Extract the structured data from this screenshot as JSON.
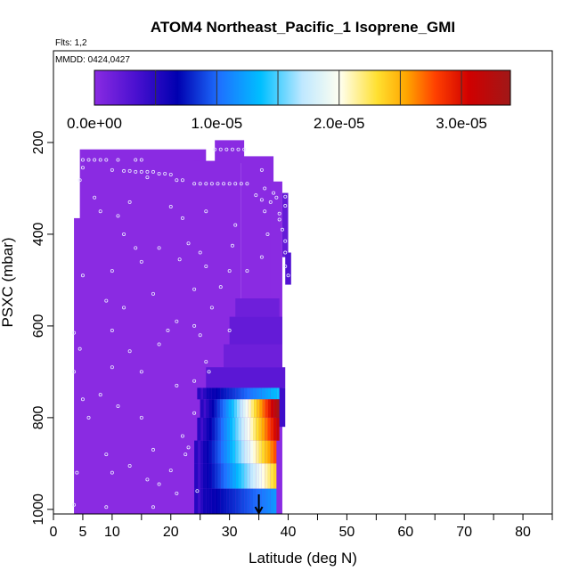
{
  "chart_data": {
    "type": "heatmap",
    "title": "ATOM4 Northeast_Pacific_1 Isoprene_GMI",
    "flights_note": "Flts: 1,2",
    "dates_note": "MMDD: 0424,0427",
    "xlabel": "Latitude (deg N)",
    "ylabel": "PSXC (mbar)",
    "xlim": [
      0,
      85
    ],
    "ylim": [
      1010,
      0
    ],
    "x_major_ticks": [
      0,
      5,
      10,
      20,
      30,
      40,
      50,
      60,
      70,
      80
    ],
    "x_tick_labels": [
      "0",
      "5",
      "10",
      "20",
      "30",
      "40",
      "50",
      "60",
      "70",
      "80"
    ],
    "x_minor_ticks": [
      15,
      25,
      35,
      45,
      55,
      65,
      75,
      85
    ],
    "y_ticks": [
      200,
      400,
      600,
      800,
      1000
    ],
    "y_tick_labels": [
      "200",
      "400",
      "600",
      "800",
      "1000"
    ],
    "colorbar": {
      "min": 0,
      "max": 3.4e-05,
      "tick_values": [
        0,
        1e-05,
        2e-05,
        3e-05
      ],
      "tick_labels": [
        "0.0e+00",
        "1.0e-05",
        "2.0e-05",
        "3.0e-05"
      ],
      "stops": [
        {
          "v": 0.0,
          "color": "#8a2be2"
        },
        {
          "v": 0.1,
          "color": "#4a10d0"
        },
        {
          "v": 0.2,
          "color": "#0000b0"
        },
        {
          "v": 0.3,
          "color": "#1e70ff"
        },
        {
          "v": 0.4,
          "color": "#00bfff"
        },
        {
          "v": 0.5,
          "color": "#bfe8ff"
        },
        {
          "v": 0.59,
          "color": "#fffff0"
        },
        {
          "v": 0.68,
          "color": "#ffe030"
        },
        {
          "v": 0.75,
          "color": "#ffa500"
        },
        {
          "v": 0.82,
          "color": "#ff4000"
        },
        {
          "v": 0.9,
          "color": "#d00000"
        },
        {
          "v": 1.0,
          "color": "#a01818"
        }
      ]
    },
    "marker": {
      "lat": 35,
      "pressure": 1010,
      "shape": "arrow-down",
      "color": "#000000"
    },
    "low_background_value": 0,
    "column_profiles": [
      {
        "lat_range": [
          3.5,
          5
        ],
        "p_range": [
          365,
          1010
        ],
        "value": 0
      },
      {
        "lat_range": [
          4.5,
          26
        ],
        "p_range": [
          215,
          1010
        ],
        "value": 0
      },
      {
        "lat_range": [
          24,
          32
        ],
        "p_range": [
          240,
          1010
        ],
        "value": 0
      },
      {
        "lat_range": [
          27.5,
          32.5
        ],
        "p_range": [
          195,
          245
        ],
        "value": 0
      },
      {
        "lat_range": [
          32,
          37.5
        ],
        "p_range": [
          230,
          1010
        ],
        "value": 0
      },
      {
        "lat_range": [
          37,
          39
        ],
        "p_range": [
          285,
          1010
        ],
        "value": 0
      },
      {
        "lat_range": [
          39,
          40
        ],
        "p_range": [
          310,
          450
        ],
        "value": 2e-06
      },
      {
        "lat_range": [
          39.5,
          40.5
        ],
        "p_range": [
          440,
          510
        ],
        "value": 3e-06
      }
    ],
    "enhanced_layers": [
      {
        "p_range": [
          735,
          760
        ],
        "lat_start": 24.5,
        "lat_end": 38.5,
        "peak_value": 1.4e-05
      },
      {
        "p_range": [
          760,
          800
        ],
        "lat_start": 25,
        "lat_end": 38.5,
        "peak_value": 3.4e-05
      },
      {
        "p_range": [
          800,
          850
        ],
        "lat_start": 24.5,
        "lat_end": 38.5,
        "peak_value": 3.2e-05
      },
      {
        "p_range": [
          850,
          900
        ],
        "lat_start": 24,
        "lat_end": 38,
        "peak_value": 2.8e-05
      },
      {
        "p_range": [
          900,
          955
        ],
        "lat_start": 24,
        "lat_end": 38,
        "peak_value": 2.4e-05
      },
      {
        "p_range": [
          955,
          1010
        ],
        "lat_start": 24,
        "lat_end": 38,
        "peak_value": 1.2e-05
      }
    ],
    "mid_layer_blocks": [
      {
        "lat_range": [
          31,
          38.5
        ],
        "p_range": [
          540,
          580
        ],
        "value": 1.5e-06
      },
      {
        "lat_range": [
          30,
          39
        ],
        "p_range": [
          580,
          640
        ],
        "value": 2e-06
      },
      {
        "lat_range": [
          29,
          39
        ],
        "p_range": [
          640,
          690
        ],
        "value": 1.5e-06
      },
      {
        "lat_range": [
          26,
          39.5
        ],
        "p_range": [
          690,
          735
        ],
        "value": 2.5e-06
      },
      {
        "lat_range": [
          38,
          39.5
        ],
        "p_range": [
          735,
          820
        ],
        "value": 4e-06
      }
    ],
    "observation_points": [
      {
        "lat": 5,
        "p": 238
      },
      {
        "lat": 6,
        "p": 238
      },
      {
        "lat": 7,
        "p": 238
      },
      {
        "lat": 8,
        "p": 238
      },
      {
        "lat": 9,
        "p": 238
      },
      {
        "lat": 11,
        "p": 238
      },
      {
        "lat": 14,
        "p": 238
      },
      {
        "lat": 15,
        "p": 238
      },
      {
        "lat": 5,
        "p": 255
      },
      {
        "lat": 10,
        "p": 260
      },
      {
        "lat": 12,
        "p": 262
      },
      {
        "lat": 13,
        "p": 262
      },
      {
        "lat": 14,
        "p": 264
      },
      {
        "lat": 15,
        "p": 264
      },
      {
        "lat": 16,
        "p": 264
      },
      {
        "lat": 17,
        "p": 264
      },
      {
        "lat": 18,
        "p": 268
      },
      {
        "lat": 19,
        "p": 268
      },
      {
        "lat": 20,
        "p": 270
      },
      {
        "lat": 21,
        "p": 282
      },
      {
        "lat": 22,
        "p": 282
      },
      {
        "lat": 24,
        "p": 290
      },
      {
        "lat": 25,
        "p": 290
      },
      {
        "lat": 26,
        "p": 290
      },
      {
        "lat": 27,
        "p": 290
      },
      {
        "lat": 28,
        "p": 290
      },
      {
        "lat": 29,
        "p": 290
      },
      {
        "lat": 30,
        "p": 290
      },
      {
        "lat": 31,
        "p": 290
      },
      {
        "lat": 32,
        "p": 290
      },
      {
        "lat": 33,
        "p": 290
      },
      {
        "lat": 27.5,
        "p": 215
      },
      {
        "lat": 28.5,
        "p": 215
      },
      {
        "lat": 29.5,
        "p": 215
      },
      {
        "lat": 30.5,
        "p": 215
      },
      {
        "lat": 31.5,
        "p": 215
      },
      {
        "lat": 32.5,
        "p": 215
      },
      {
        "lat": 4.5,
        "p": 282
      },
      {
        "lat": 16,
        "p": 276
      },
      {
        "lat": 36,
        "p": 300
      },
      {
        "lat": 39.5,
        "p": 318
      },
      {
        "lat": 39.5,
        "p": 338
      },
      {
        "lat": 38.5,
        "p": 368
      },
      {
        "lat": 39,
        "p": 390
      },
      {
        "lat": 39.5,
        "p": 415
      },
      {
        "lat": 39.5,
        "p": 440
      },
      {
        "lat": 39.5,
        "p": 470
      },
      {
        "lat": 40,
        "p": 490
      },
      {
        "lat": 34.5,
        "p": 315
      },
      {
        "lat": 35.5,
        "p": 325
      },
      {
        "lat": 36,
        "p": 350
      },
      {
        "lat": 37,
        "p": 330
      },
      {
        "lat": 38,
        "p": 320
      },
      {
        "lat": 36.5,
        "p": 400
      },
      {
        "lat": 35.5,
        "p": 450
      },
      {
        "lat": 33,
        "p": 480
      },
      {
        "lat": 31,
        "p": 380
      },
      {
        "lat": 30.5,
        "p": 425
      },
      {
        "lat": 30,
        "p": 480
      },
      {
        "lat": 28.5,
        "p": 515
      },
      {
        "lat": 26,
        "p": 350
      },
      {
        "lat": 25,
        "p": 440
      },
      {
        "lat": 26,
        "p": 470
      },
      {
        "lat": 27,
        "p": 560
      },
      {
        "lat": 30,
        "p": 610
      },
      {
        "lat": 25,
        "p": 620
      },
      {
        "lat": 26,
        "p": 678
      },
      {
        "lat": 26.5,
        "p": 700
      },
      {
        "lat": 24,
        "p": 520
      },
      {
        "lat": 22,
        "p": 365
      },
      {
        "lat": 20,
        "p": 340
      },
      {
        "lat": 18,
        "p": 430
      },
      {
        "lat": 21.5,
        "p": 455
      },
      {
        "lat": 23,
        "p": 420
      },
      {
        "lat": 17,
        "p": 530
      },
      {
        "lat": 19.5,
        "p": 610
      },
      {
        "lat": 21,
        "p": 590
      },
      {
        "lat": 18,
        "p": 640
      },
      {
        "lat": 13,
        "p": 330
      },
      {
        "lat": 11,
        "p": 360
      },
      {
        "lat": 12,
        "p": 400
      },
      {
        "lat": 14,
        "p": 430
      },
      {
        "lat": 15,
        "p": 460
      },
      {
        "lat": 8,
        "p": 350
      },
      {
        "lat": 10,
        "p": 480
      },
      {
        "lat": 5,
        "p": 490
      },
      {
        "lat": 9,
        "p": 545
      },
      {
        "lat": 12,
        "p": 560
      },
      {
        "lat": 7,
        "p": 320
      },
      {
        "lat": 4.5,
        "p": 650
      },
      {
        "lat": 10,
        "p": 610
      },
      {
        "lat": 13,
        "p": 655
      },
      {
        "lat": 5,
        "p": 760
      },
      {
        "lat": 8,
        "p": 750
      },
      {
        "lat": 11,
        "p": 775
      },
      {
        "lat": 15,
        "p": 800
      },
      {
        "lat": 6,
        "p": 800
      },
      {
        "lat": 3.5,
        "p": 615
      },
      {
        "lat": 9,
        "p": 880
      },
      {
        "lat": 4,
        "p": 920
      },
      {
        "lat": 10,
        "p": 920
      },
      {
        "lat": 13,
        "p": 905
      },
      {
        "lat": 17,
        "p": 870
      },
      {
        "lat": 16,
        "p": 935
      },
      {
        "lat": 18,
        "p": 945
      },
      {
        "lat": 20,
        "p": 915
      },
      {
        "lat": 21,
        "p": 965
      },
      {
        "lat": 22,
        "p": 840
      },
      {
        "lat": 23,
        "p": 865
      },
      {
        "lat": 24,
        "p": 790
      },
      {
        "lat": 24.5,
        "p": 960
      },
      {
        "lat": 3.5,
        "p": 990
      },
      {
        "lat": 9,
        "p": 995
      },
      {
        "lat": 17,
        "p": 995
      },
      {
        "lat": 22.5,
        "p": 880
      },
      {
        "lat": 24,
        "p": 720
      },
      {
        "lat": 21,
        "p": 730
      },
      {
        "lat": 24,
        "p": 600
      },
      {
        "lat": 15,
        "p": 700
      },
      {
        "lat": 10,
        "p": 690
      },
      {
        "lat": 3.5,
        "p": 700
      },
      {
        "lat": 35.5,
        "p": 260
      },
      {
        "lat": 38.5,
        "p": 355
      },
      {
        "lat": 37.5,
        "p": 310
      }
    ]
  }
}
